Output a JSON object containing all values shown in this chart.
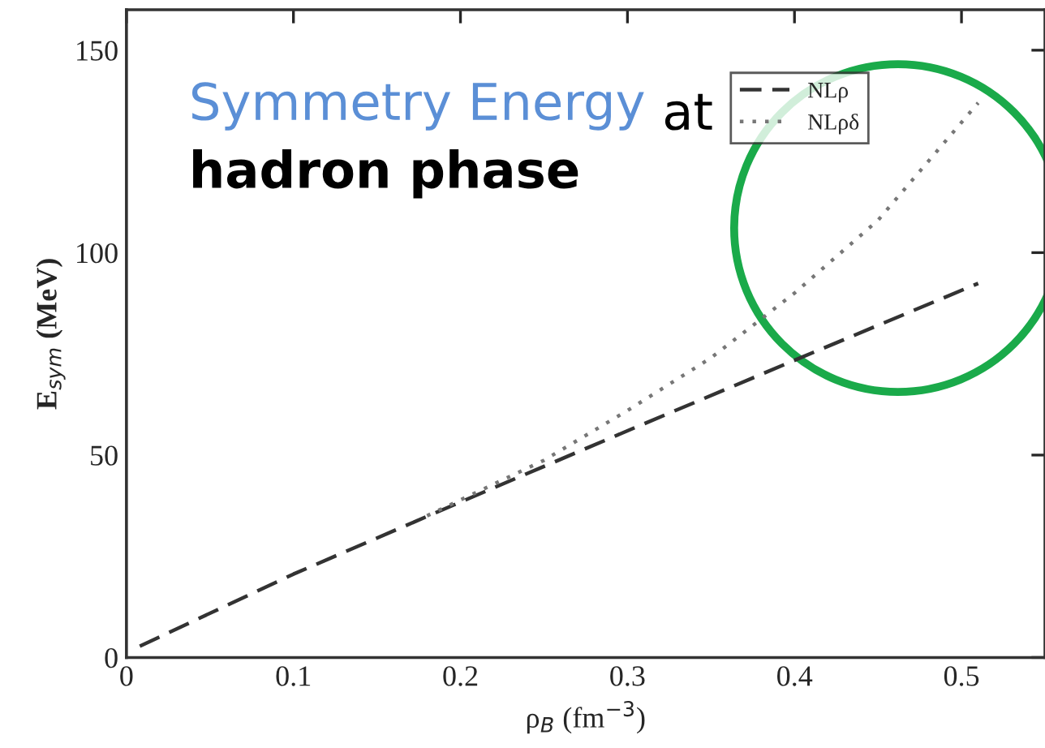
{
  "chart_data": {
    "type": "line",
    "xlabel": "ρ$_{B}$ (fm$^{−3}$)",
    "ylabel": "E$_{sym}$ (MeV)",
    "annotations": [
      "Symmetry Energy",
      "at",
      "hadron phase"
    ],
    "xlim": [
      0,
      0.55
    ],
    "xticks": [
      {
        "value": 0,
        "label": "0"
      },
      0.1,
      0.2,
      0.3,
      0.4,
      0.5
    ],
    "ylim": [
      0,
      160
    ],
    "yticks": [
      0,
      50,
      100,
      150
    ],
    "grid": false,
    "legend": "top right",
    "marker": "none",
    "series": [
      {
        "name": "NLρ",
        "color": "#333333",
        "line_style": "dashed",
        "x": [
          0.008,
          0.1,
          0.2,
          0.3,
          0.4,
          0.51
        ],
        "values": [
          2.8,
          20.6,
          38.4,
          56,
          73.4,
          92.4
        ]
      },
      {
        "name": "NLρδ",
        "color": "#777777",
        "line_style": "dotted",
        "x": [
          0.18,
          0.25,
          0.3,
          0.35,
          0.4,
          0.45,
          0.51
        ],
        "values": [
          35,
          48.7,
          61,
          74,
          90,
          108,
          137
        ]
      }
    ]
  }
}
